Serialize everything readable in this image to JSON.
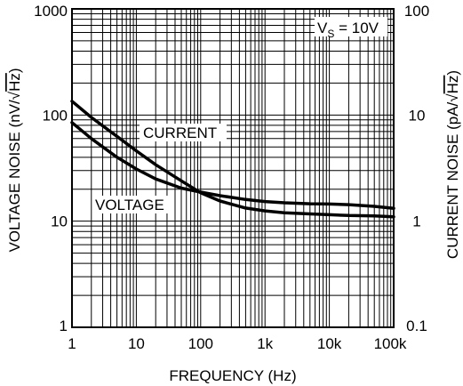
{
  "chart_data": {
    "type": "line",
    "xscale": "log",
    "yscale": "log",
    "xlim": [
      1,
      100000
    ],
    "ylim_left": [
      1,
      1000
    ],
    "ylim_right": [
      0.1,
      100
    ],
    "grid": true,
    "xlabel": "FREQUENCY (Hz)",
    "ylabel_left_prefix": "VOLTAGE NOISE (nV/",
    "ylabel_left_root": "Hz",
    "ylabel_left_suffix": ")",
    "ylabel_right_prefix": "CURRENT NOISE (pA/",
    "ylabel_right_root": "Hz",
    "ylabel_right_suffix": ")",
    "annotation": {
      "v": "V",
      "sub": "S",
      "rest": " = 10V"
    },
    "x_ticks": [
      {
        "value": 1,
        "label": "1"
      },
      {
        "value": 10,
        "label": "10"
      },
      {
        "value": 100,
        "label": "100"
      },
      {
        "value": 1000,
        "label": "1k"
      },
      {
        "value": 10000,
        "label": "10k"
      },
      {
        "value": 100000,
        "label": "100k"
      }
    ],
    "y_ticks_left": [
      {
        "value": 1,
        "label": "1"
      },
      {
        "value": 10,
        "label": "10"
      },
      {
        "value": 100,
        "label": "100"
      },
      {
        "value": 1000,
        "label": "1000"
      }
    ],
    "y_ticks_right": [
      {
        "value": 0.1,
        "label": "0.1"
      },
      {
        "value": 1,
        "label": "1"
      },
      {
        "value": 10,
        "label": "10"
      },
      {
        "value": 100,
        "label": "100"
      }
    ],
    "series": [
      {
        "name": "CURRENT",
        "axis": "right",
        "x": [
          1,
          2,
          5,
          10,
          20,
          50,
          100,
          200,
          500,
          1000,
          2000,
          5000,
          10000,
          20000,
          50000,
          100000
        ],
        "y": [
          13.5,
          9.5,
          6.3,
          4.6,
          3.4,
          2.4,
          1.85,
          1.55,
          1.33,
          1.25,
          1.2,
          1.17,
          1.15,
          1.13,
          1.12,
          1.1
        ]
      },
      {
        "name": "VOLTAGE",
        "axis": "left",
        "x": [
          1,
          2,
          5,
          10,
          20,
          50,
          100,
          200,
          500,
          1000,
          2000,
          5000,
          10000,
          20000,
          50000,
          100000
        ],
        "y": [
          85,
          60,
          40,
          31,
          25,
          20.5,
          18.8,
          17.4,
          16,
          15.3,
          14.9,
          14.6,
          14.5,
          14.3,
          13.8,
          13.2
        ]
      }
    ]
  }
}
